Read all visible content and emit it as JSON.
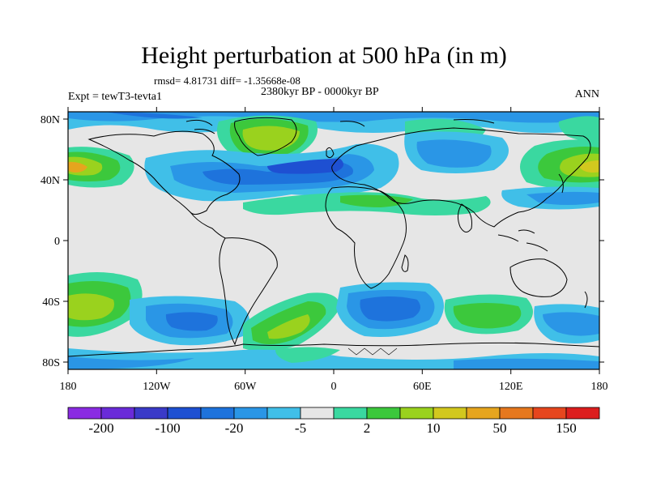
{
  "title": "Height perturbation at 500 hPa (in m)",
  "stats_line": "rmsd= 4.81731 diff= -1.35668e-08",
  "period": "2380kyr BP - 0000kyr BP",
  "experiment": "Expt = tewT3-tevta1",
  "season": "ANN",
  "lat_labels": [
    "80N",
    "40N",
    "0",
    "40S",
    "80S"
  ],
  "lon_labels": [
    "180",
    "120W",
    "60W",
    "0",
    "60E",
    "120E",
    "180"
  ],
  "colorbar": {
    "colors": [
      "#8a2be2",
      "#6a2bd8",
      "#3a3ac8",
      "#1e50d2",
      "#1e73dc",
      "#2a96e6",
      "#40bfe8",
      "#e6e6e6",
      "#3ad8a0",
      "#3cc83c",
      "#9ad21e",
      "#d2c81e",
      "#e6a51e",
      "#e6781e",
      "#e6461e",
      "#dc1e1e"
    ],
    "labels": [
      "-200",
      "-100",
      "-20",
      "-5",
      "2",
      "10",
      "50",
      "150"
    ]
  },
  "colors": {
    "land_neutral": "#e6e6e6",
    "light_blue": "#40bfe8",
    "mid_blue": "#2a96e6",
    "dark_blue": "#1e73dc",
    "teal": "#3ad8a0",
    "green": "#3cc83c",
    "yellow_green": "#9ad21e",
    "yellow": "#d2c81e",
    "orange": "#e6a51e"
  }
}
